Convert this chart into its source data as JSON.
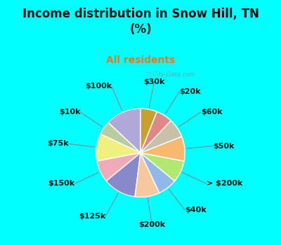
{
  "title": "Income distribution in Snow Hill, TN\n(%)",
  "subtitle": "All residents",
  "title_color": "#111111",
  "subtitle_color": "#e87820",
  "bg_cyan": "#00ffff",
  "bg_chart_color": "#d8efe8",
  "labels": [
    "$100k",
    "$10k",
    "$75k",
    "$150k",
    "$125k",
    "$200k",
    "$40k",
    "> $200k",
    "$50k",
    "$60k",
    "$20k",
    "$30k"
  ],
  "values": [
    13,
    5,
    10,
    8,
    12,
    9,
    7,
    8,
    9,
    7,
    6,
    6
  ],
  "colors": [
    "#b0a8d8",
    "#b8cca0",
    "#f0f080",
    "#f0aab8",
    "#8888cc",
    "#f5c8a0",
    "#90b8e8",
    "#b0e870",
    "#f8b870",
    "#c8c0a8",
    "#e08888",
    "#c8a030"
  ],
  "startangle": 90,
  "wedge_linewidth": 1.0,
  "wedge_edgecolor": "#ffffff",
  "label_fontsize": 8.0,
  "watermark": "City-Data.com"
}
